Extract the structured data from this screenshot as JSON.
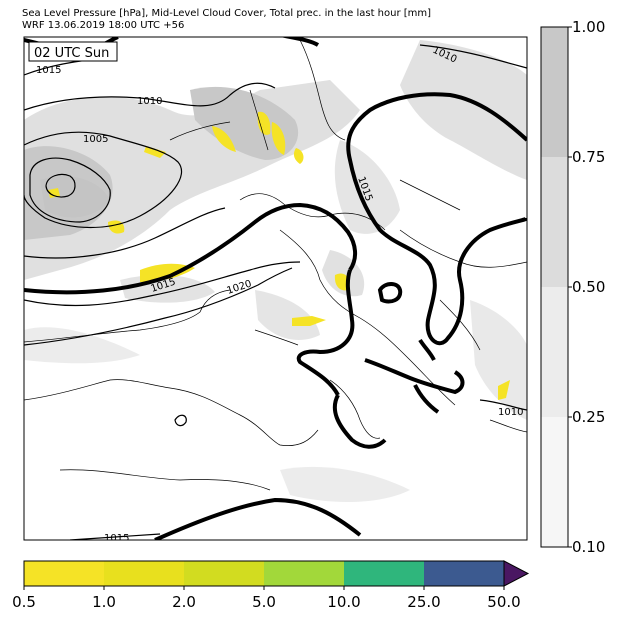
{
  "header": {
    "title_line1": "Sea Level Pressure [hPa], Mid-Level Cloud Cover, Total prec. in the last hour [mm]",
    "title_line2": "WRF 13.06.2019 18:00 UTC +56"
  },
  "map": {
    "time_label": "02 UTC Sun",
    "isobar_labels": [
      "1015",
      "1010",
      "1005",
      "1010",
      "1015",
      "1015",
      "1020",
      "1010",
      "1015"
    ]
  },
  "cloud_legend": {
    "ticks": [
      "1.00",
      "0.75",
      "0.50",
      "0.25",
      "0.10"
    ],
    "colors": [
      "#c8c8c8",
      "#dcdcdc",
      "#ececec",
      "#f6f6f6"
    ]
  },
  "precip_legend": {
    "ticks": [
      "0.5",
      "1.0",
      "2.0",
      "5.0",
      "10.0",
      "25.0",
      "50.0"
    ],
    "colors": [
      "#f5e326",
      "#e8e01e",
      "#d2dc20",
      "#a2d83a",
      "#2fb67c",
      "#3c5a90",
      "#4a1762"
    ]
  }
}
